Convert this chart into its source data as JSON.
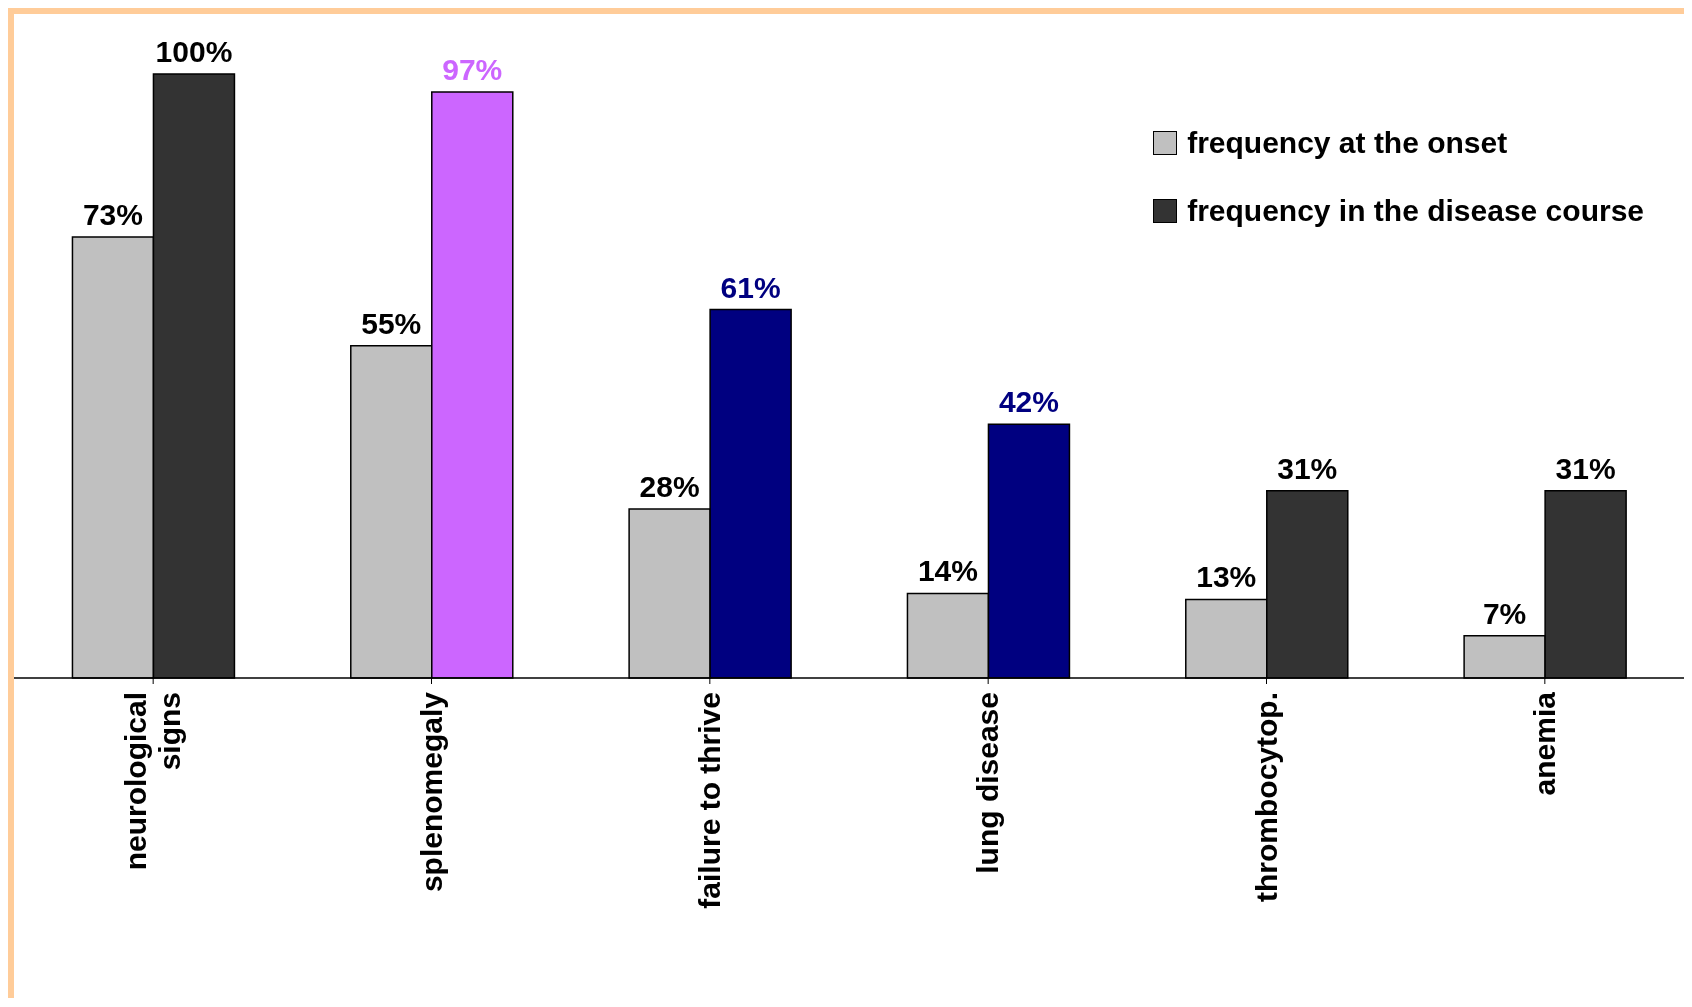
{
  "chart_data": {
    "type": "bar",
    "categories": [
      "neurological\nsigns",
      "splenomegaly",
      "failure to thrive",
      "lung disease",
      "thrombocytop.",
      "anemia"
    ],
    "series": [
      {
        "name": "frequency at the onset",
        "color": "#c0c0c0",
        "values": [
          73,
          55,
          28,
          14,
          13,
          7
        ],
        "value_labels": [
          "73%",
          "55%",
          "28%",
          "14%",
          "13%",
          "7%"
        ]
      },
      {
        "name": "frequency in the disease course",
        "color": "#333333",
        "colors": [
          "#333333",
          "#cc66ff",
          "#000080",
          "#000080",
          "#333333",
          "#333333"
        ],
        "values": [
          100,
          97,
          61,
          42,
          31,
          31
        ],
        "value_labels": [
          "100%",
          "97%",
          "61%",
          "42%",
          "31%",
          "31%"
        ]
      }
    ],
    "tick_labels": "x",
    "legend": "top right",
    "grid": false
  }
}
